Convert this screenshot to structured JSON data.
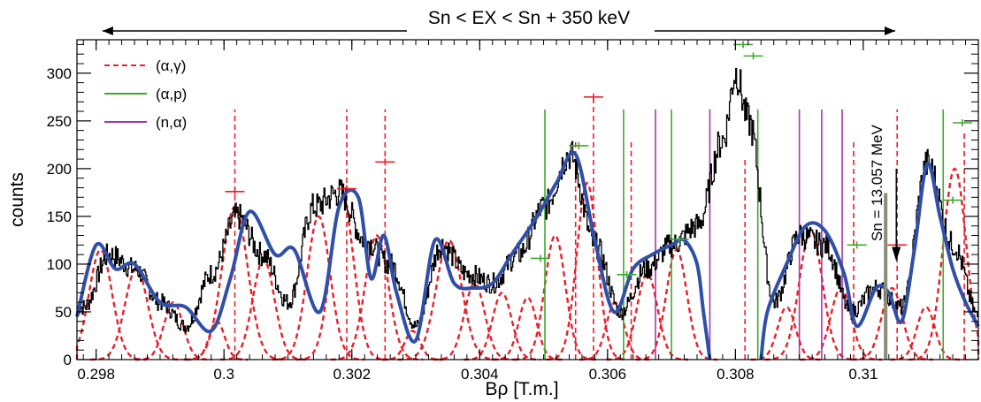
{
  "chart_data": {
    "type": "line",
    "title": "",
    "xlabel": "Bρ [T.m.]",
    "ylabel": "counts",
    "xlim": [
      0.2977,
      0.3118
    ],
    "ylim": [
      0,
      335
    ],
    "x_ticks": [
      {
        "value": 0.298,
        "label": "0.298"
      },
      {
        "value": 0.3,
        "label": "0.3"
      },
      {
        "value": 0.302,
        "label": "0.302"
      },
      {
        "value": 0.304,
        "label": "0.304"
      },
      {
        "value": 0.306,
        "label": "0.306"
      },
      {
        "value": 0.308,
        "label": "0.308"
      },
      {
        "value": 0.31,
        "label": "0.31"
      }
    ],
    "y_ticks": [
      {
        "value": 0,
        "label": "0"
      },
      {
        "value": 50,
        "label": "50"
      },
      {
        "value": 100,
        "label": "100"
      },
      {
        "value": 150,
        "label": "150"
      },
      {
        "value": 200,
        "label": "200"
      },
      {
        "value": 250,
        "label": "250"
      },
      {
        "value": 300,
        "label": "300"
      }
    ],
    "range_annotation": {
      "text": "Sn < EX < Sn + 350 keV",
      "x_start": 0.2981,
      "x_end": 0.3105
    },
    "sn_marker": {
      "text": "Sn = 13.057 MeV",
      "x": 0.31035,
      "y_top": 180,
      "y_bottom": 0
    },
    "legend": {
      "placement": "top-left",
      "entries": [
        {
          "label": "(α,γ)",
          "color": "#e8202a",
          "style": "dashed"
        },
        {
          "label": "(α,p)",
          "color": "#3daa2e",
          "style": "solid"
        },
        {
          "label": "(n,α)",
          "color": "#a33aa3",
          "style": "solid"
        }
      ]
    },
    "colors": {
      "data": "#000000",
      "fit": "#2f4fa8",
      "alpha_gamma": "#e8202a",
      "alpha_p": "#3daa2e",
      "n_alpha": "#a33aa3",
      "sn_line": "#8c8c7a"
    },
    "series": [
      {
        "kind": "histogram",
        "x": [
          0.2978,
          0.2982,
          0.2986,
          0.299,
          0.2994,
          0.2998,
          0.3002,
          0.3006,
          0.301,
          0.3014,
          0.3018,
          0.3022,
          0.3026,
          0.303,
          0.3034,
          0.3038,
          0.3042,
          0.3046,
          0.305,
          0.3054,
          0.3058,
          0.3062,
          0.3066,
          0.307,
          0.3074,
          0.3078,
          0.308,
          0.3082,
          0.3086,
          0.309,
          0.3094,
          0.3098,
          0.3102,
          0.3106,
          0.311,
          0.3114,
          0.3118
        ],
        "values": [
          55,
          110,
          95,
          60,
          35,
          90,
          150,
          110,
          60,
          160,
          175,
          125,
          100,
          35,
          120,
          90,
          80,
          110,
          160,
          215,
          120,
          50,
          95,
          120,
          140,
          230,
          300,
          250,
          60,
          130,
          120,
          50,
          75,
          55,
          205,
          120,
          45
        ]
      },
      {
        "kind": "fit",
        "x": [
          0.2977,
          0.298,
          0.2983,
          0.2986,
          0.299,
          0.2994,
          0.2998,
          0.3001,
          0.3004,
          0.3008,
          0.3011,
          0.3015,
          0.3018,
          0.3021,
          0.3023,
          0.3025,
          0.3027,
          0.303,
          0.3033,
          0.3036,
          0.3039,
          0.3042,
          0.3045,
          0.3049,
          0.3052,
          0.3055,
          0.3058,
          0.3061,
          0.3064,
          0.3067,
          0.307,
          0.3072,
          0.3074,
          0.3075,
          0.3076
        ],
        "values": [
          45,
          120,
          95,
          100,
          60,
          55,
          30,
          85,
          155,
          110,
          115,
          50,
          160,
          170,
          85,
          130,
          70,
          20,
          125,
          80,
          75,
          80,
          110,
          150,
          185,
          215,
          125,
          50,
          95,
          110,
          120,
          125,
          100,
          50,
          0
        ]
      },
      {
        "kind": "fit",
        "x": [
          0.3084,
          0.3085,
          0.3088,
          0.3091,
          0.3094,
          0.3097,
          0.3099,
          0.3102,
          0.3104,
          0.3106,
          0.3108,
          0.311,
          0.3112,
          0.3114,
          0.3116,
          0.3118
        ],
        "values": [
          0,
          50,
          100,
          140,
          135,
          90,
          35,
          75,
          70,
          40,
          115,
          205,
          150,
          95,
          60,
          35
        ]
      }
    ],
    "peak_fits": [
      {
        "center": 0.29807,
        "height": 115,
        "width": 0.00018
      },
      {
        "center": 0.29863,
        "height": 95,
        "width": 0.00018
      },
      {
        "center": 0.29921,
        "height": 60,
        "width": 0.00015
      },
      {
        "center": 0.29989,
        "height": 40,
        "width": 0.00012
      },
      {
        "center": 0.30017,
        "height": 160,
        "width": 0.0002
      },
      {
        "center": 0.30062,
        "height": 105,
        "width": 0.00017
      },
      {
        "center": 0.30148,
        "height": 150,
        "width": 0.00018
      },
      {
        "center": 0.30185,
        "height": 170,
        "width": 0.00018
      },
      {
        "center": 0.30239,
        "height": 130,
        "width": 0.00018
      },
      {
        "center": 0.30295,
        "height": 30,
        "width": 0.00012
      },
      {
        "center": 0.30352,
        "height": 125,
        "width": 0.0002
      },
      {
        "center": 0.30392,
        "height": 80,
        "width": 0.00016
      },
      {
        "center": 0.30435,
        "height": 70,
        "width": 0.00015
      },
      {
        "center": 0.30475,
        "height": 65,
        "width": 0.00014
      },
      {
        "center": 0.30518,
        "height": 130,
        "width": 0.00016
      },
      {
        "center": 0.30568,
        "height": 185,
        "width": 0.00016
      },
      {
        "center": 0.30612,
        "height": 60,
        "width": 0.00014
      },
      {
        "center": 0.30662,
        "height": 90,
        "width": 0.00016
      },
      {
        "center": 0.30708,
        "height": 115,
        "width": 0.00016
      },
      {
        "center": 0.3088,
        "height": 55,
        "width": 0.00014
      },
      {
        "center": 0.30918,
        "height": 135,
        "width": 0.00018
      },
      {
        "center": 0.30965,
        "height": 75,
        "width": 0.00016
      },
      {
        "center": 0.31045,
        "height": 75,
        "width": 0.00016
      },
      {
        "center": 0.31098,
        "height": 55,
        "width": 0.00014
      },
      {
        "center": 0.31143,
        "height": 200,
        "width": 0.00018
      }
    ],
    "reaction_lines": [
      {
        "reaction": "alpha_gamma",
        "x": 0.30017,
        "y_top": 262
      },
      {
        "reaction": "alpha_gamma",
        "x": 0.30192,
        "y_top": 262
      },
      {
        "reaction": "alpha_gamma",
        "x": 0.30252,
        "y_top": 262
      },
      {
        "reaction": "alpha_gamma",
        "x": 0.3055,
        "y_top": 230
      },
      {
        "reaction": "alpha_gamma",
        "x": 0.30578,
        "y_top": 275
      },
      {
        "reaction": "alpha_gamma",
        "x": 0.30637,
        "y_top": 230
      },
      {
        "reaction": "alpha_gamma",
        "x": 0.30815,
        "y_top": 210
      },
      {
        "reaction": "alpha_gamma",
        "x": 0.30985,
        "y_top": 230
      },
      {
        "reaction": "alpha_gamma",
        "x": 0.31053,
        "y_top": 262
      },
      {
        "reaction": "alpha_gamma",
        "x": 0.31158,
        "y_top": 240
      },
      {
        "reaction": "alpha_p",
        "x": 0.30502,
        "y_top": 262
      },
      {
        "reaction": "alpha_p",
        "x": 0.30625,
        "y_top": 262
      },
      {
        "reaction": "alpha_p",
        "x": 0.307,
        "y_top": 262
      },
      {
        "reaction": "alpha_p",
        "x": 0.30835,
        "y_top": 262
      },
      {
        "reaction": "alpha_p",
        "x": 0.31125,
        "y_top": 262
      },
      {
        "reaction": "n_alpha",
        "x": 0.30675,
        "y_top": 262
      },
      {
        "reaction": "n_alpha",
        "x": 0.3076,
        "y_top": 262
      },
      {
        "reaction": "n_alpha",
        "x": 0.309,
        "y_top": 262
      },
      {
        "reaction": "n_alpha",
        "x": 0.30935,
        "y_top": 262
      },
      {
        "reaction": "n_alpha",
        "x": 0.30967,
        "y_top": 262
      }
    ],
    "cross_markers": [
      {
        "color": "#e8202a",
        "x": 0.30017,
        "y": 176
      },
      {
        "color": "#e8202a",
        "x": 0.30192,
        "y": 179
      },
      {
        "color": "#e8202a",
        "x": 0.30252,
        "y": 207
      },
      {
        "color": "#e8202a",
        "x": 0.30578,
        "y": 275
      },
      {
        "color": "#e8202a",
        "x": 0.31053,
        "y": 120
      },
      {
        "color": "#3daa2e",
        "x": 0.30495,
        "y": 106
      },
      {
        "color": "#3daa2e",
        "x": 0.30555,
        "y": 224
      },
      {
        "color": "#3daa2e",
        "x": 0.3063,
        "y": 89
      },
      {
        "color": "#3daa2e",
        "x": 0.30712,
        "y": 126
      },
      {
        "color": "#3daa2e",
        "x": 0.30812,
        "y": 330
      },
      {
        "color": "#3daa2e",
        "x": 0.30828,
        "y": 318
      },
      {
        "color": "#3daa2e",
        "x": 0.3099,
        "y": 120
      },
      {
        "color": "#3daa2e",
        "x": 0.31155,
        "y": 248
      },
      {
        "color": "#3daa2e",
        "x": 0.3114,
        "y": 167
      }
    ]
  }
}
